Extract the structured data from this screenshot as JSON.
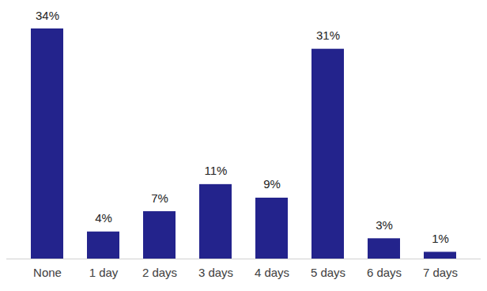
{
  "chart_data": {
    "type": "bar",
    "categories": [
      "None",
      "1 day",
      "2 days",
      "3 days",
      "4 days",
      "5 days",
      "6 days",
      "7 days"
    ],
    "values": [
      34,
      4,
      7,
      11,
      9,
      31,
      3,
      1
    ],
    "value_labels": [
      "34%",
      "4%",
      "7%",
      "11%",
      "9%",
      "31%",
      "3%",
      "1%"
    ],
    "color": "#23238c",
    "data_labels": true,
    "tick_labels": "x"
  }
}
